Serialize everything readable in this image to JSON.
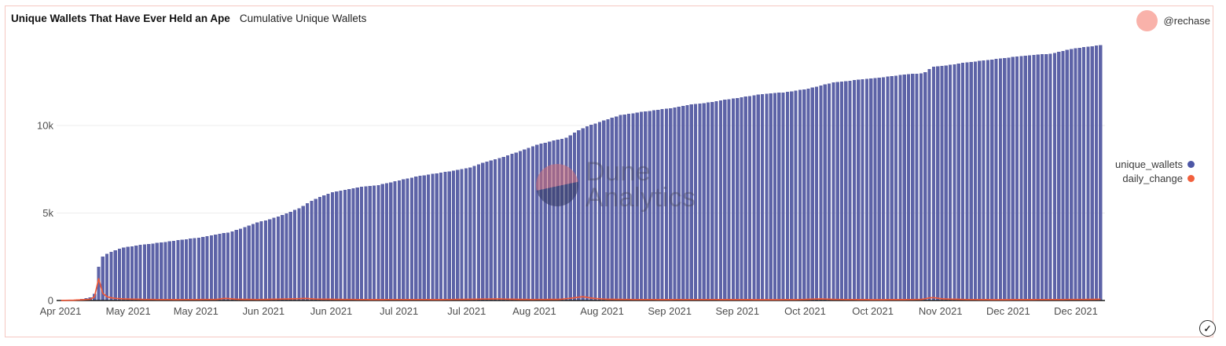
{
  "header": {
    "title": "Unique Wallets That Have Ever Held an Ape",
    "subtitle": "Cumulative Unique Wallets",
    "author_handle": "@rechase"
  },
  "legend": {
    "items": [
      {
        "label": "unique_wallets",
        "color": "#4d57a6"
      },
      {
        "label": "daily_change",
        "color": "#f2603d"
      }
    ]
  },
  "watermark": {
    "line1": "Dune",
    "line2": "Analytics"
  },
  "icons": {
    "check": "✓"
  },
  "colors": {
    "card_border": "#f6c8c2",
    "avatar": "#f9b2aa",
    "bar": "#5d63a7",
    "line": "#ee5939",
    "grid": "#ededed",
    "axis": "#1a1a1a",
    "tick_text": "#4d4d4d"
  },
  "chart_data": {
    "type": "bar",
    "subtype": "combo-bar-line",
    "title": "Unique Wallets That Have Ever Held an Ape",
    "subtitle": "Cumulative Unique Wallets",
    "xlabel": "",
    "ylabel": "",
    "legend_position": "right",
    "grid": "horizontal",
    "x_tick_labels": [
      "Apr 2021",
      "May 2021",
      "May 2021",
      "Jun 2021",
      "Jun 2021",
      "Jul 2021",
      "Jul 2021",
      "Aug 2021",
      "Aug 2021",
      "Sep 2021",
      "Sep 2021",
      "Oct 2021",
      "Oct 2021",
      "Nov 2021",
      "Dec 2021",
      "Dec 2021"
    ],
    "y_tick_labels": [
      "0",
      "5k",
      "10k"
    ],
    "y_tick_values": [
      0,
      5000,
      10000
    ],
    "ylim": [
      0,
      15000
    ],
    "bar_count": 250,
    "series": [
      {
        "name": "unique_wallets",
        "type": "bar",
        "color": "#5d63a7",
        "keypoints": [
          [
            0.0,
            20
          ],
          [
            0.015,
            60
          ],
          [
            0.027,
            150
          ],
          [
            0.032,
            320
          ],
          [
            0.0355,
            1750
          ],
          [
            0.038,
            2400
          ],
          [
            0.042,
            2600
          ],
          [
            0.049,
            2800
          ],
          [
            0.058,
            3000
          ],
          [
            0.068,
            3100
          ],
          [
            0.079,
            3200
          ],
          [
            0.094,
            3300
          ],
          [
            0.113,
            3450
          ],
          [
            0.133,
            3600
          ],
          [
            0.147,
            3750
          ],
          [
            0.162,
            3900
          ],
          [
            0.177,
            4200
          ],
          [
            0.188,
            4450
          ],
          [
            0.198,
            4600
          ],
          [
            0.209,
            4800
          ],
          [
            0.218,
            5000
          ],
          [
            0.23,
            5300
          ],
          [
            0.241,
            5700
          ],
          [
            0.252,
            6000
          ],
          [
            0.262,
            6200
          ],
          [
            0.275,
            6350
          ],
          [
            0.29,
            6500
          ],
          [
            0.305,
            6600
          ],
          [
            0.328,
            6900
          ],
          [
            0.343,
            7100
          ],
          [
            0.365,
            7300
          ],
          [
            0.38,
            7450
          ],
          [
            0.393,
            7600
          ],
          [
            0.407,
            7900
          ],
          [
            0.425,
            8200
          ],
          [
            0.44,
            8500
          ],
          [
            0.458,
            8900
          ],
          [
            0.471,
            9100
          ],
          [
            0.486,
            9300
          ],
          [
            0.497,
            9700
          ],
          [
            0.508,
            10000
          ],
          [
            0.523,
            10300
          ],
          [
            0.538,
            10600
          ],
          [
            0.561,
            10800
          ],
          [
            0.587,
            11000
          ],
          [
            0.606,
            11200
          ],
          [
            0.621,
            11300
          ],
          [
            0.636,
            11450
          ],
          [
            0.653,
            11600
          ],
          [
            0.674,
            11800
          ],
          [
            0.696,
            11900
          ],
          [
            0.718,
            12100
          ],
          [
            0.742,
            12450
          ],
          [
            0.764,
            12600
          ],
          [
            0.782,
            12700
          ],
          [
            0.809,
            12900
          ],
          [
            0.83,
            13000
          ],
          [
            0.838,
            13350
          ],
          [
            0.847,
            13400
          ],
          [
            0.87,
            13600
          ],
          [
            0.885,
            13700
          ],
          [
            0.913,
            13900
          ],
          [
            0.937,
            14050
          ],
          [
            0.952,
            14100
          ],
          [
            0.974,
            14400
          ],
          [
            1.0,
            14600
          ]
        ]
      },
      {
        "name": "daily_change",
        "type": "line",
        "color": "#ee5939",
        "keypoints": [
          [
            0.0,
            5
          ],
          [
            0.01,
            15
          ],
          [
            0.02,
            40
          ],
          [
            0.028,
            70
          ],
          [
            0.032,
            160
          ],
          [
            0.0355,
            1400
          ],
          [
            0.038,
            800
          ],
          [
            0.04,
            420
          ],
          [
            0.044,
            220
          ],
          [
            0.05,
            130
          ],
          [
            0.06,
            90
          ],
          [
            0.08,
            60
          ],
          [
            0.11,
            50
          ],
          [
            0.15,
            60
          ],
          [
            0.158,
            130
          ],
          [
            0.168,
            70
          ],
          [
            0.19,
            55
          ],
          [
            0.225,
            95
          ],
          [
            0.235,
            120
          ],
          [
            0.245,
            80
          ],
          [
            0.27,
            60
          ],
          [
            0.3,
            50
          ],
          [
            0.33,
            55
          ],
          [
            0.365,
            50
          ],
          [
            0.395,
            70
          ],
          [
            0.42,
            90
          ],
          [
            0.435,
            70
          ],
          [
            0.455,
            55
          ],
          [
            0.48,
            65
          ],
          [
            0.492,
            140
          ],
          [
            0.502,
            220
          ],
          [
            0.512,
            120
          ],
          [
            0.525,
            70
          ],
          [
            0.55,
            55
          ],
          [
            0.58,
            50
          ],
          [
            0.61,
            55
          ],
          [
            0.64,
            50
          ],
          [
            0.68,
            45
          ],
          [
            0.71,
            50
          ],
          [
            0.73,
            90
          ],
          [
            0.745,
            60
          ],
          [
            0.78,
            45
          ],
          [
            0.81,
            50
          ],
          [
            0.828,
            60
          ],
          [
            0.838,
            180
          ],
          [
            0.848,
            90
          ],
          [
            0.87,
            55
          ],
          [
            0.9,
            45
          ],
          [
            0.93,
            50
          ],
          [
            0.96,
            55
          ],
          [
            0.985,
            60
          ],
          [
            1.0,
            70
          ]
        ]
      }
    ]
  }
}
